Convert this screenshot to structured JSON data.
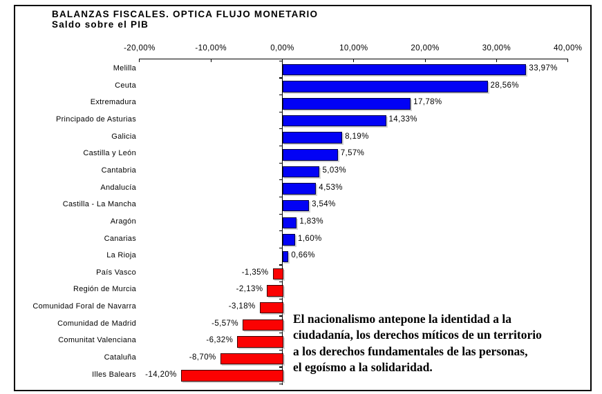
{
  "chart_data": {
    "type": "bar",
    "orientation": "horizontal",
    "title": "BALANZAS FISCALES. OPTICA FLUJO MONETARIO",
    "subtitle": "Saldo sobre el PIB",
    "categories": [
      "Melilla",
      "Ceuta",
      "Extremadura",
      "Principado de Asturias",
      "Galicia",
      "Castilla y León",
      "Cantabria",
      "Andalucía",
      "Castilla - La Mancha",
      "Aragón",
      "Canarias",
      "La Rioja",
      "País Vasco",
      "Región de Murcia",
      "Comunidad Foral de Navarra",
      "Comunidad de Madrid",
      "Comunitat Valenciana",
      "Cataluña",
      "Illes Balears"
    ],
    "values": [
      33.97,
      28.56,
      17.78,
      14.33,
      8.19,
      7.57,
      5.03,
      4.53,
      3.54,
      1.83,
      1.6,
      0.66,
      -1.35,
      -2.13,
      -3.18,
      -5.57,
      -6.32,
      -8.7,
      -14.2
    ],
    "value_labels": [
      "33,97%",
      "28,56%",
      "17,78%",
      "14,33%",
      "8,19%",
      "7,57%",
      "5,03%",
      "4,53%",
      "3,54%",
      "1,83%",
      "1,60%",
      "0,66%",
      "-1,35%",
      "-2,13%",
      "-3,18%",
      "-5,57%",
      "-6,32%",
      "-8,70%",
      "-14,20%"
    ],
    "x_axis": {
      "position": "top",
      "range": [
        -20,
        40
      ],
      "ticks": [
        {
          "value": -20,
          "label": "-20,00%"
        },
        {
          "value": -10,
          "label": "-10,00%"
        },
        {
          "value": 0,
          "label": "0,00%"
        },
        {
          "value": 10,
          "label": "10,00%"
        },
        {
          "value": 20,
          "label": "20,00%"
        },
        {
          "value": 30,
          "label": "30,00%"
        },
        {
          "value": 40,
          "label": "40,00%"
        }
      ]
    },
    "colors": {
      "positive": "#0202f5",
      "negative": "#fb0202"
    },
    "grid": false,
    "legend": false
  },
  "annotation": {
    "lines": [
      "El nacionalismo antepone la identidad a la",
      "ciudadanía, los derechos míticos de un territorio",
      "a los derechos fundamentales de las personas,",
      "el egoísmo a la solidaridad."
    ],
    "full_text": "El nacionalismo antepone la identidad a la ciudadanía, los derechos míticos de un territorio a los derechos fundamentales de las personas, el egoísmo a la solidaridad."
  }
}
